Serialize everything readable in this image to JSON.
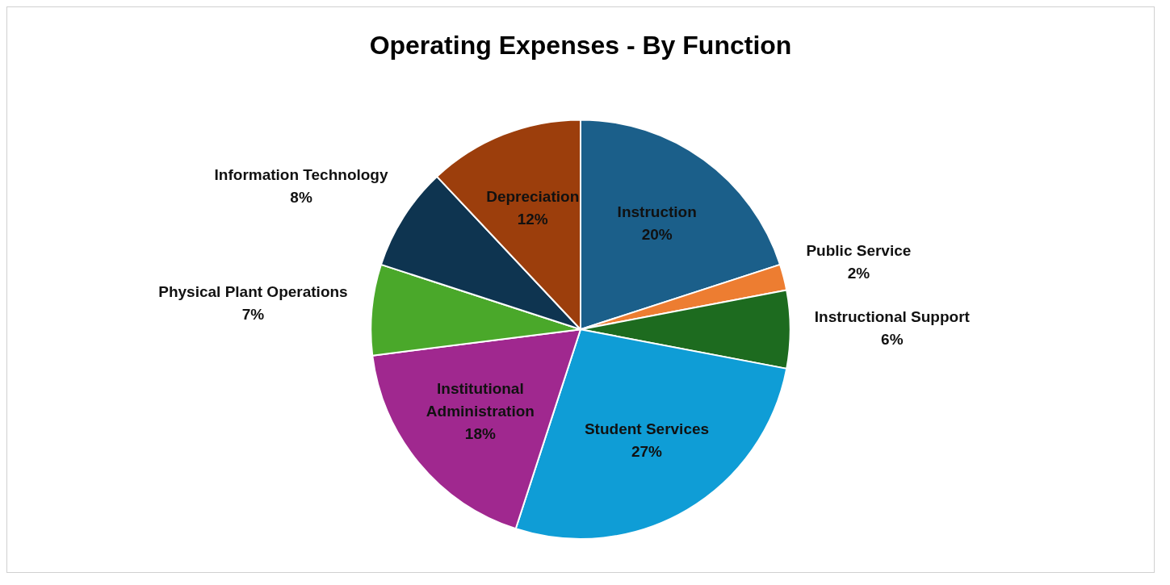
{
  "chart_data": {
    "type": "pie",
    "title": "Operating Expenses - By Function",
    "categories": [
      "Instruction",
      "Public Service",
      "Instructional Support",
      "Student Services",
      "Institutional Administration",
      "Physical Plant Operations",
      "Information Technology",
      "Depreciation"
    ],
    "values": [
      20,
      2,
      6,
      27,
      18,
      7,
      8,
      12
    ],
    "value_labels": [
      "20%",
      "2%",
      "6%",
      "27%",
      "18%",
      "7%",
      "8%",
      "12%"
    ],
    "colors": [
      "#1b5f8a",
      "#ed7d31",
      "#1d6b1f",
      "#0f9dd6",
      "#a0288f",
      "#4aa82a",
      "#0e3450",
      "#9c3e0c"
    ],
    "legend": false
  }
}
